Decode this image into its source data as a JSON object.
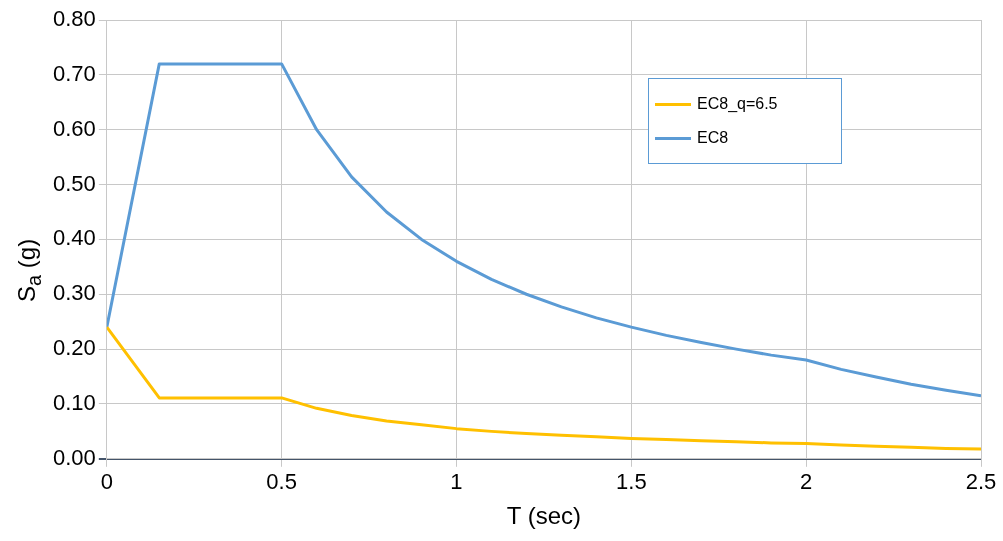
{
  "chart_data": {
    "type": "line",
    "xlabel": "T (sec)",
    "ylabel": "S$_{a}$ (g)",
    "xlim": [
      0,
      2.5
    ],
    "xticks": [
      0,
      0.5,
      1,
      1.5,
      2,
      2.5
    ],
    "ylim": [
      0,
      0.8
    ],
    "yticks": [
      {
        "value": 0,
        "label": "0.00"
      },
      {
        "value": 0.1,
        "label": "0.10"
      },
      {
        "value": 0.2,
        "label": "0.20"
      },
      {
        "value": 0.3,
        "label": "0.30"
      },
      {
        "value": 0.4,
        "label": "0.40"
      },
      {
        "value": 0.5,
        "label": "0.50"
      },
      {
        "value": 0.6,
        "label": "0.60"
      },
      {
        "value": 0.7,
        "label": "0.70"
      },
      {
        "value": 0.8,
        "label": "0.80"
      }
    ],
    "x": [
      0,
      0.15,
      0.5,
      0.6,
      0.7,
      0.8,
      0.9,
      1.0,
      1.1,
      1.2,
      1.3,
      1.4,
      1.5,
      1.6,
      1.7,
      1.8,
      1.9,
      2.0,
      2.1,
      2.2,
      2.3,
      2.4,
      2.5
    ],
    "series": [
      {
        "name": "EC8_q=6.5",
        "color": "#ffc000",
        "values": [
          0.24,
          0.111,
          0.111,
          0.092,
          0.079,
          0.069,
          0.062,
          0.055,
          0.05,
          0.046,
          0.043,
          0.04,
          0.037,
          0.035,
          0.033,
          0.031,
          0.029,
          0.028,
          0.025,
          0.023,
          0.021,
          0.019,
          0.018
        ]
      },
      {
        "name": "EC8",
        "color": "#5b9bd5",
        "values": [
          0.24,
          0.72,
          0.72,
          0.6,
          0.514,
          0.45,
          0.4,
          0.36,
          0.327,
          0.3,
          0.277,
          0.257,
          0.24,
          0.225,
          0.212,
          0.2,
          0.189,
          0.18,
          0.163,
          0.149,
          0.136,
          0.125,
          0.115
        ]
      }
    ],
    "grid": true,
    "legend": "top right",
    "marker": "none",
    "line_style": "solid"
  }
}
